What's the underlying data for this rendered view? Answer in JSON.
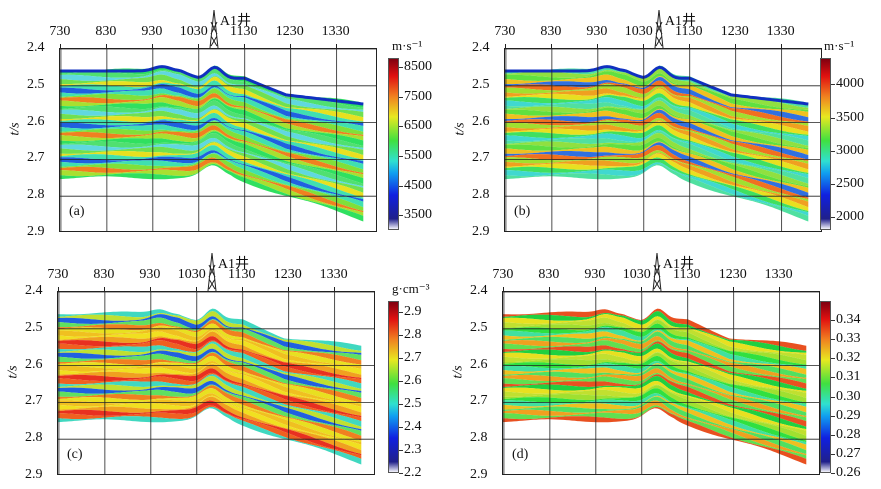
{
  "chart_data": [
    {
      "type": "heatmap",
      "panel_label": "(a)",
      "x_ticks": [
        "730",
        "830",
        "930",
        "1030",
        "1130",
        "1230",
        "1330"
      ],
      "y_ticks": [
        "2.4",
        "2.5",
        "2.6",
        "2.7",
        "2.8",
        "2.9"
      ],
      "ylabel": "t/s",
      "ylim": [
        2.4,
        2.9
      ],
      "well_label": "A1井",
      "grid": true,
      "colorbar": {
        "unit": "m·s⁻¹",
        "ticks": [
          "8500",
          "7500",
          "6500",
          "5500",
          "4500",
          "3500"
        ],
        "range": [
          3000,
          8800
        ],
        "colormap": "jet"
      },
      "palette": [
        "#30e060",
        "#7fe03a",
        "#40e0b0",
        "#60d8e0",
        "#a8e030",
        "#40e0b0",
        "#e8e020",
        "#50e070",
        "#f08020",
        "#2060e0",
        "#70e050"
      ]
    },
    {
      "type": "heatmap",
      "panel_label": "(b)",
      "x_ticks": [
        "730",
        "830",
        "930",
        "1030",
        "1130",
        "1230",
        "1330"
      ],
      "y_ticks": [
        "2.4",
        "2.5",
        "2.6",
        "2.7",
        "2.8",
        "2.9"
      ],
      "ylabel": "t/s",
      "ylim": [
        2.4,
        2.9
      ],
      "well_label": "A1井",
      "grid": true,
      "colorbar": {
        "unit": "m·s⁻¹",
        "ticks": [
          "4000",
          "3500",
          "3000",
          "2500",
          "2000"
        ],
        "range": [
          1800,
          4400
        ],
        "colormap": "jet"
      },
      "palette": [
        "#40e060",
        "#a0e030",
        "#f0c020",
        "#50e0a0",
        "#e8e020",
        "#f07020",
        "#60e040",
        "#40d8d0",
        "#f0a020",
        "#3070e0",
        "#90e040"
      ]
    },
    {
      "type": "heatmap",
      "panel_label": "(c)",
      "x_ticks": [
        "730",
        "830",
        "930",
        "1030",
        "1130",
        "1230",
        "1330"
      ],
      "y_ticks": [
        "2.4",
        "2.5",
        "2.6",
        "2.7",
        "2.8",
        "2.9"
      ],
      "ylabel": "t/s",
      "ylim": [
        2.4,
        2.9
      ],
      "well_label": "A1井",
      "grid": true,
      "colorbar": {
        "unit": "g·cm⁻³",
        "ticks": [
          "2.9",
          "2.8",
          "2.7",
          "2.6",
          "2.5",
          "2.4",
          "2.3",
          "2.2"
        ],
        "range": [
          2.2,
          2.95
        ],
        "colormap": "jet"
      },
      "palette": [
        "#f0e020",
        "#f08020",
        "#c0e030",
        "#e83020",
        "#f0c020",
        "#60e060",
        "#40d8c0",
        "#f0a020",
        "#e8e020",
        "#2060e0",
        "#f06020"
      ]
    },
    {
      "type": "heatmap",
      "panel_label": "(d)",
      "x_ticks": [
        "730",
        "830",
        "930",
        "1030",
        "1130",
        "1230",
        "1330"
      ],
      "y_ticks": [
        "2.4",
        "2.5",
        "2.6",
        "2.7",
        "2.8",
        "2.9"
      ],
      "ylabel": "t/s",
      "ylim": [
        2.4,
        2.9
      ],
      "well_label": "A1井",
      "grid": true,
      "colorbar": {
        "unit": "",
        "ticks": [
          "0.34",
          "0.33",
          "0.32",
          "0.31",
          "0.30",
          "0.29",
          "0.28",
          "0.27",
          "0.26"
        ],
        "range": [
          0.26,
          0.35
        ],
        "colormap": "jet"
      },
      "palette": [
        "#30e040",
        "#e8e020",
        "#60e050",
        "#f0c020",
        "#a0e030",
        "#20d040",
        "#f0a020",
        "#40e0a0",
        "#c0e030",
        "#e85020",
        "#50e060"
      ]
    }
  ]
}
